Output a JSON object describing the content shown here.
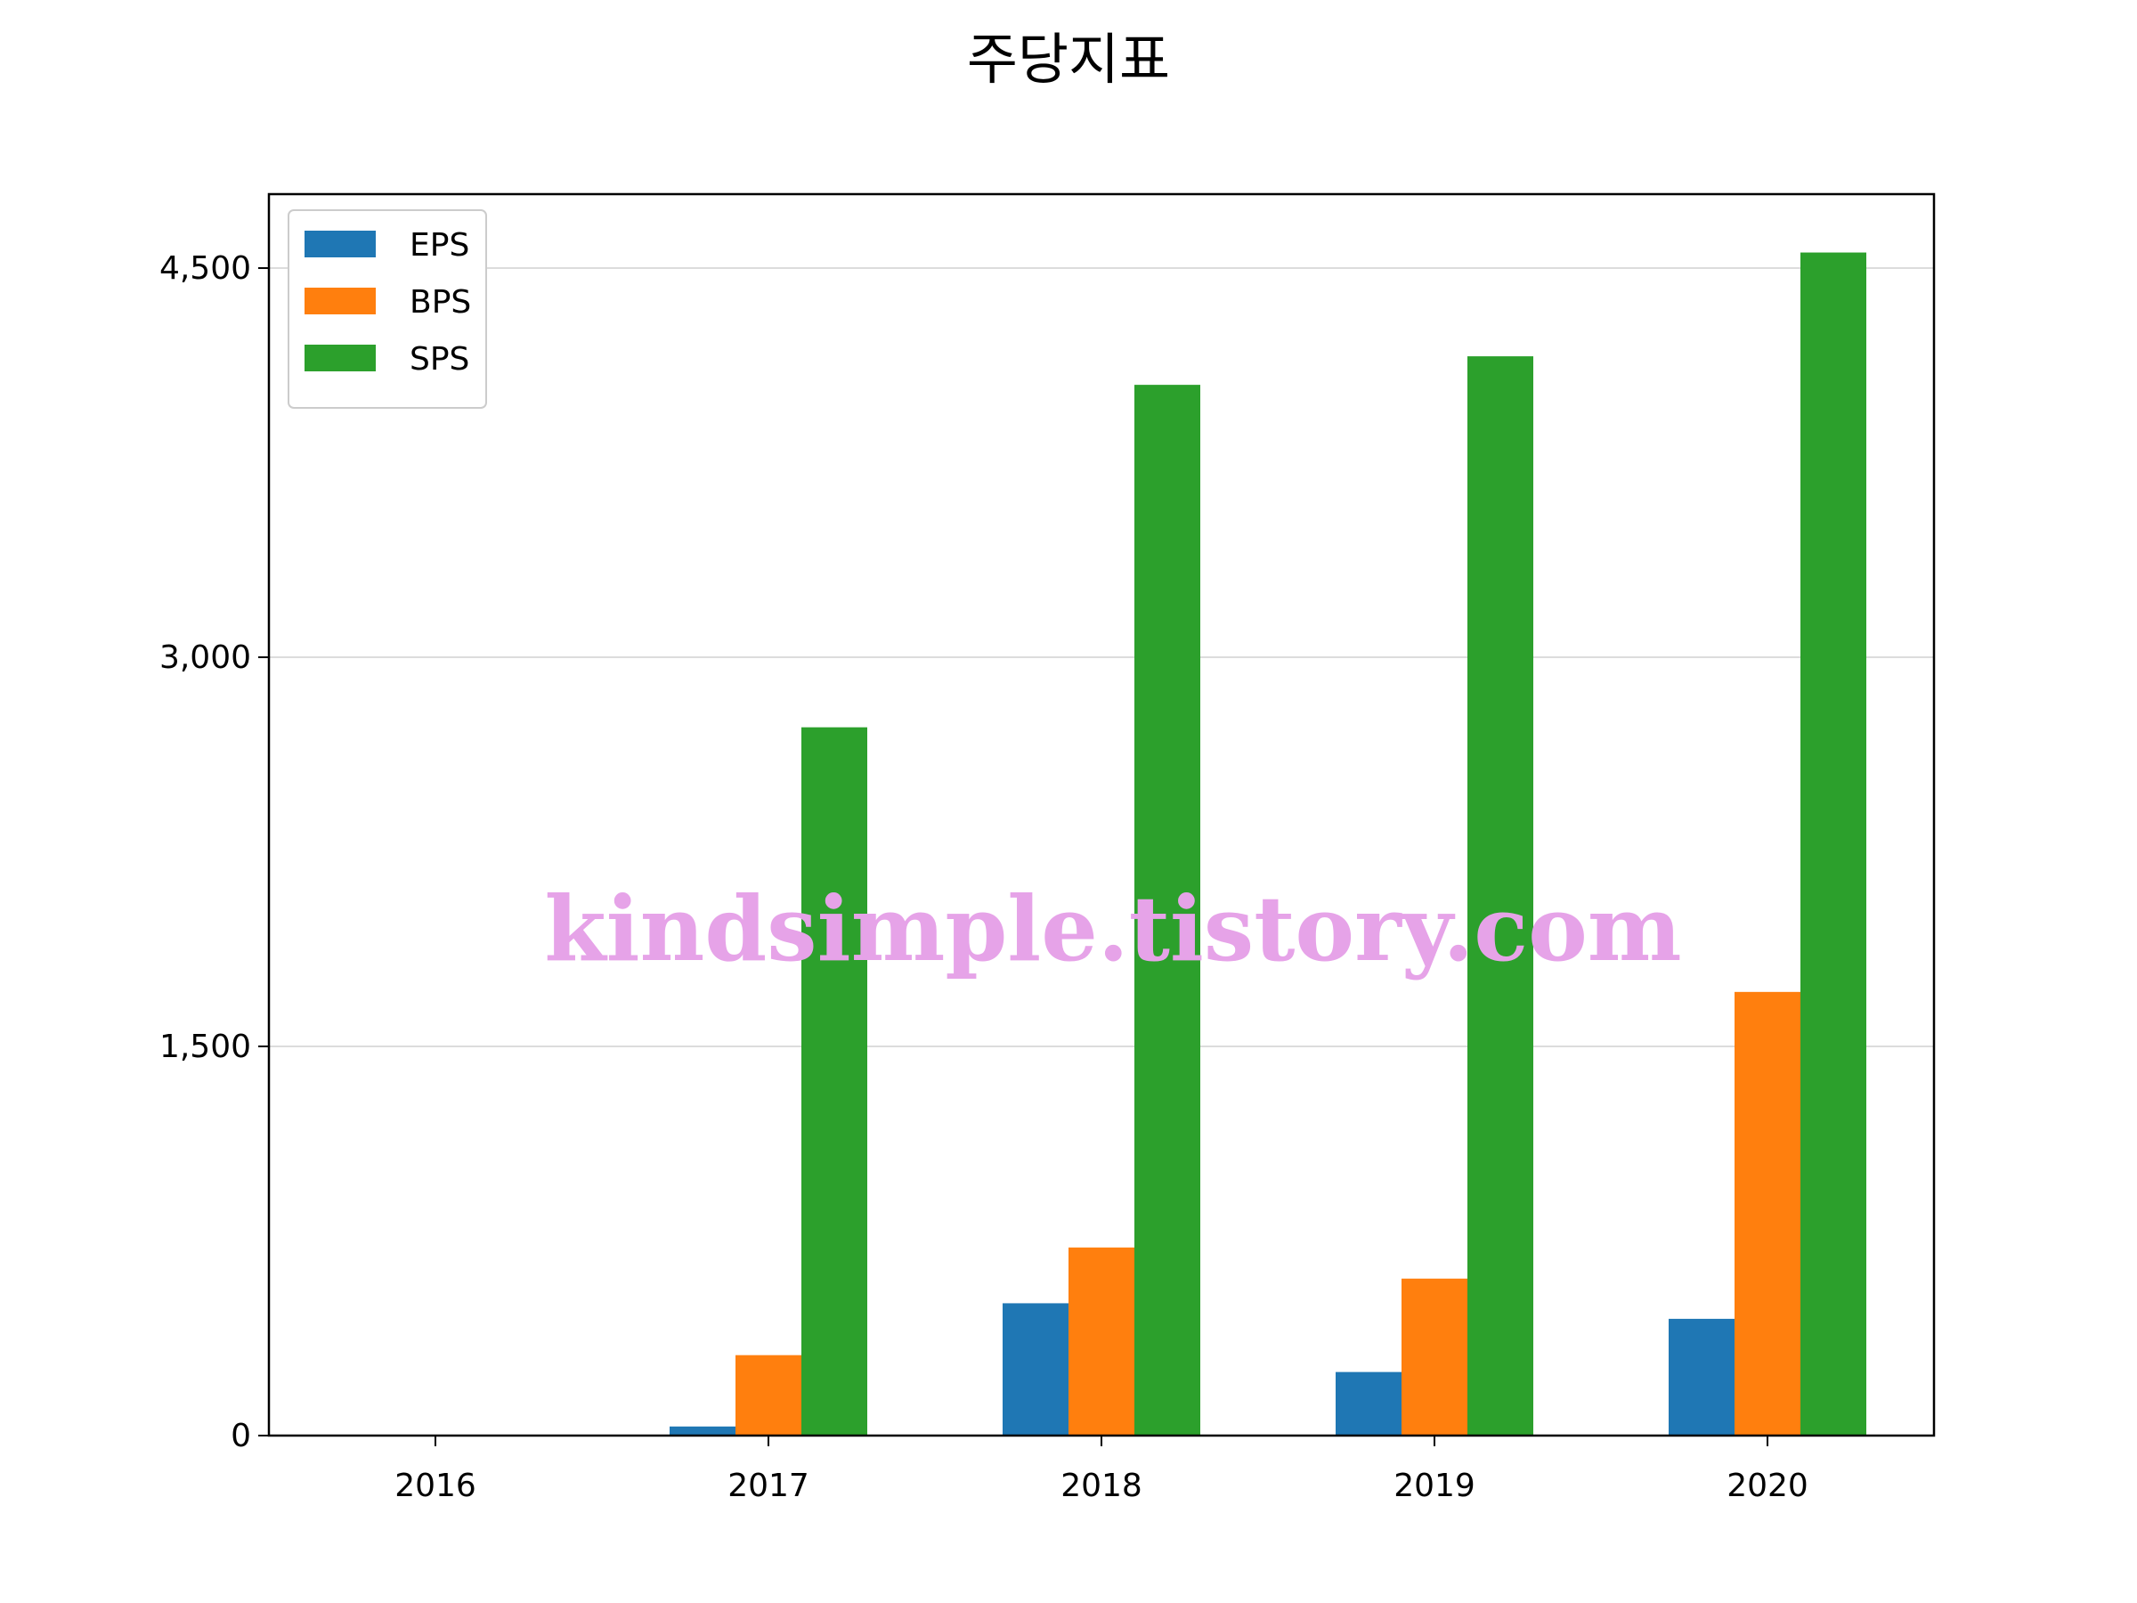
{
  "chart_data": {
    "type": "bar",
    "title": "주당지표",
    "xlabel": "",
    "ylabel": "",
    "categories": [
      "2016",
      "2017",
      "2018",
      "2019",
      "2020"
    ],
    "series": [
      {
        "name": "EPS",
        "color": "#1f77b4",
        "values": [
          0,
          35,
          510,
          245,
          450
        ]
      },
      {
        "name": "BPS",
        "color": "#ff7f0e",
        "values": [
          0,
          310,
          725,
          605,
          1710
        ]
      },
      {
        "name": "SPS",
        "color": "#2ca02c",
        "values": [
          0,
          2730,
          4050,
          4160,
          4560
        ]
      }
    ],
    "ylim": [
      0,
      4785
    ],
    "yticks": [
      0,
      1500,
      3000,
      4500
    ],
    "ytick_labels": [
      "0",
      "1,500",
      "3,000",
      "4,500"
    ],
    "grid": "horizontal",
    "legend": "top-left"
  },
  "watermark": {
    "text": "kindsimple.tistory.com",
    "color": "#e6a3e8"
  }
}
